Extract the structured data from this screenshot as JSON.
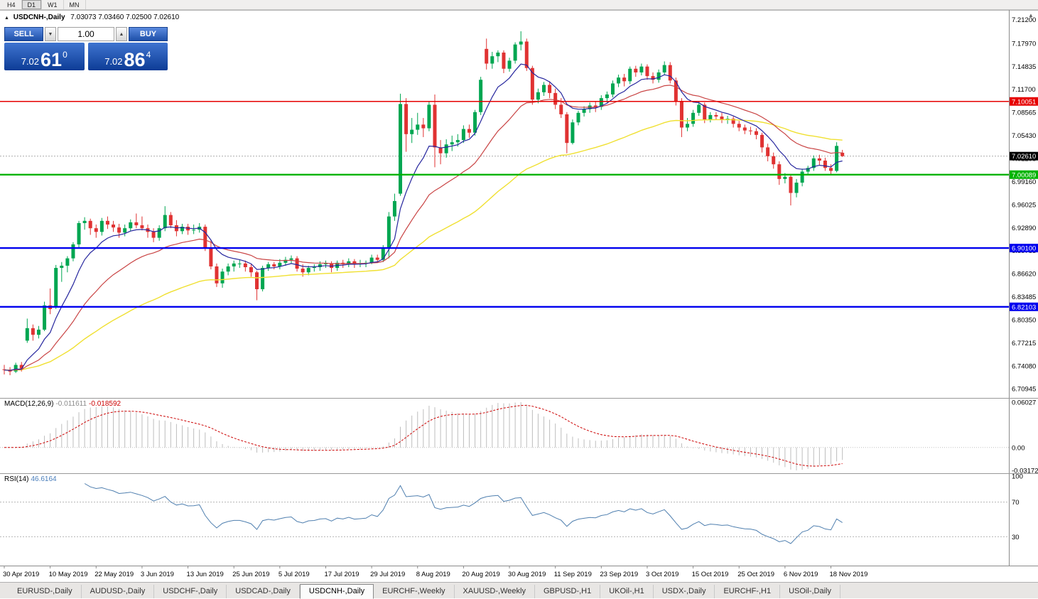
{
  "toolbar": {
    "timeframes": [
      {
        "label": "H4",
        "active": false
      },
      {
        "label": "D1",
        "active": true
      },
      {
        "label": "W1",
        "active": false
      },
      {
        "label": "MN",
        "active": false
      }
    ]
  },
  "chart": {
    "title": "USDCNH-,Daily",
    "ohlc_text": "7.03073 7.03460 7.02500 7.02610"
  },
  "trade_panel": {
    "sell_label": "SELL",
    "buy_label": "BUY",
    "volume": "1.00",
    "sell_price": {
      "prefix": "7.02",
      "big": "61",
      "sup": "0"
    },
    "buy_price": {
      "prefix": "7.02",
      "big": "86",
      "sup": "4"
    }
  },
  "price_axis": {
    "labels": [
      "7.21200",
      "7.17970",
      "7.14835",
      "7.11700",
      "7.08565",
      "7.05430",
      "7.02295",
      "6.99160",
      "6.96025",
      "6.92890",
      "6.89755",
      "6.86620",
      "6.83485",
      "6.80350",
      "6.77215",
      "6.74080",
      "6.70945"
    ],
    "current": "7.02610"
  },
  "levels": [
    {
      "price": 7.10051,
      "label": "7.10051",
      "color": "#e60000",
      "width": 1.4
    },
    {
      "price": 7.00089,
      "label": "7.00089",
      "color": "#00b300",
      "width": 2.4
    },
    {
      "price": 6.901,
      "label": "6.90100",
      "color": "#0000ee",
      "width": 2.4
    },
    {
      "price": 6.82103,
      "label": "6.82103",
      "color": "#0000ee",
      "width": 2.4
    }
  ],
  "macd": {
    "title": "MACD(12,26,9)",
    "value_main": "-0.011611",
    "value_signal": "-0.018592",
    "axis_top": "0.06027",
    "axis_zero": "0.00",
    "axis_bottom": "-0.03172"
  },
  "rsi": {
    "title": "RSI(14)",
    "value": "46.6164",
    "axis": [
      "100",
      "70",
      "30"
    ],
    "levels": [
      70,
      30
    ]
  },
  "date_axis": {
    "labels": [
      "30 Apr 2019",
      "10 May 2019",
      "22 May 2019",
      "3 Jun 2019",
      "13 Jun 2019",
      "25 Jun 2019",
      "5 Jul 2019",
      "17 Jul 2019",
      "29 Jul 2019",
      "8 Aug 2019",
      "20 Aug 2019",
      "30 Aug 2019",
      "11 Sep 2019",
      "23 Sep 2019",
      "3 Oct 2019",
      "15 Oct 2019",
      "25 Oct 2019",
      "6 Nov 2019",
      "18 Nov 2019"
    ],
    "tick_indices": [
      0,
      8,
      16,
      24,
      32,
      40,
      48,
      56,
      64,
      72,
      80,
      88,
      96,
      104,
      112,
      120,
      128,
      136,
      144
    ]
  },
  "tabs": {
    "items": [
      "EURUSD-,Daily",
      "AUDUSD-,Daily",
      "USDCHF-,Daily",
      "USDCAD-,Daily",
      "USDCNH-,Daily",
      "EURCHF-,Weekly",
      "XAUUSD-,Weekly",
      "GBPUSD-,H1",
      "UKOil-,H1",
      "USDX-,Daily",
      "EURCHF-,H1",
      "USOil-,Daily"
    ],
    "active_index": 4
  },
  "colors": {
    "up": "#00a651",
    "down": "#e03232",
    "ma_fast": "#26269e",
    "ma_mid": "#c94444",
    "ma_slow": "#f0e032",
    "macd_hist": "#bdbdbd",
    "macd_signal": "#cc0000",
    "rsi_line": "#4f7faf",
    "current_line": "#aaaaaa"
  },
  "chart_data": {
    "type": "candlestick",
    "symbol": "USDCNH",
    "timeframe": "Daily",
    "ylim": [
      6.7,
      7.225
    ],
    "indicators": {
      "ema_fast": 8,
      "ema_mid": 21,
      "ema_slow": 55,
      "macd": [
        12,
        26,
        9
      ],
      "rsi": 14
    },
    "candles": [
      [
        6.736,
        6.742,
        6.729,
        6.735
      ],
      [
        6.735,
        6.739,
        6.728,
        6.733
      ],
      [
        6.733,
        6.745,
        6.731,
        6.742
      ],
      [
        6.742,
        6.746,
        6.733,
        6.737
      ],
      [
        6.775,
        6.805,
        6.772,
        6.792
      ],
      [
        6.792,
        6.797,
        6.775,
        6.783
      ],
      [
        6.783,
        6.795,
        6.778,
        6.79
      ],
      [
        6.79,
        6.828,
        6.788,
        6.823
      ],
      [
        6.823,
        6.846,
        6.811,
        6.818
      ],
      [
        6.82,
        6.878,
        6.818,
        6.874
      ],
      [
        6.874,
        6.882,
        6.855,
        6.877
      ],
      [
        6.877,
        6.89,
        6.868,
        6.887
      ],
      [
        6.887,
        6.909,
        6.883,
        6.906
      ],
      [
        6.906,
        6.938,
        6.901,
        6.935
      ],
      [
        6.935,
        6.943,
        6.926,
        6.938
      ],
      [
        6.938,
        6.941,
        6.919,
        6.928
      ],
      [
        6.928,
        6.933,
        6.915,
        6.923
      ],
      [
        6.923,
        6.942,
        6.918,
        6.938
      ],
      [
        6.938,
        6.944,
        6.927,
        6.933
      ],
      [
        6.933,
        6.938,
        6.923,
        6.929
      ],
      [
        6.929,
        6.934,
        6.915,
        6.922
      ],
      [
        6.922,
        6.933,
        6.917,
        6.928
      ],
      [
        6.928,
        6.94,
        6.924,
        6.936
      ],
      [
        6.936,
        6.948,
        6.928,
        6.932
      ],
      [
        6.932,
        6.944,
        6.925,
        6.928
      ],
      [
        6.928,
        6.933,
        6.915,
        6.923
      ],
      [
        6.923,
        6.928,
        6.909,
        6.915
      ],
      [
        6.915,
        6.932,
        6.911,
        6.928
      ],
      [
        6.928,
        6.958,
        6.924,
        6.946
      ],
      [
        6.946,
        6.95,
        6.928,
        6.932
      ],
      [
        6.932,
        6.939,
        6.917,
        6.924
      ],
      [
        6.924,
        6.934,
        6.92,
        6.93
      ],
      [
        6.93,
        6.934,
        6.919,
        6.925
      ],
      [
        6.925,
        6.933,
        6.92,
        6.926
      ],
      [
        6.926,
        6.935,
        6.922,
        6.93
      ],
      [
        6.93,
        6.933,
        6.897,
        6.902
      ],
      [
        6.902,
        6.912,
        6.872,
        6.876
      ],
      [
        6.876,
        6.88,
        6.848,
        6.853
      ],
      [
        6.853,
        6.873,
        6.847,
        6.869
      ],
      [
        6.869,
        6.88,
        6.864,
        6.876
      ],
      [
        6.876,
        6.884,
        6.869,
        6.88
      ],
      [
        6.88,
        6.885,
        6.874,
        6.88
      ],
      [
        6.88,
        6.884,
        6.869,
        6.875
      ],
      [
        6.875,
        6.879,
        6.862,
        6.868
      ],
      [
        6.868,
        6.87,
        6.83,
        6.845
      ],
      [
        6.845,
        6.877,
        6.842,
        6.874
      ],
      [
        6.874,
        6.882,
        6.87,
        6.879
      ],
      [
        6.879,
        6.882,
        6.872,
        6.876
      ],
      [
        6.876,
        6.886,
        6.872,
        6.881
      ],
      [
        6.881,
        6.889,
        6.877,
        6.885
      ],
      [
        6.885,
        6.891,
        6.88,
        6.887
      ],
      [
        6.887,
        6.89,
        6.869,
        6.873
      ],
      [
        6.873,
        6.879,
        6.862,
        6.868
      ],
      [
        6.868,
        6.877,
        6.864,
        6.874
      ],
      [
        6.874,
        6.879,
        6.869,
        6.875
      ],
      [
        6.875,
        6.883,
        6.87,
        6.879
      ],
      [
        6.879,
        6.884,
        6.874,
        6.88
      ],
      [
        6.88,
        6.883,
        6.868,
        6.874
      ],
      [
        6.874,
        6.884,
        6.87,
        6.881
      ],
      [
        6.881,
        6.885,
        6.874,
        6.879
      ],
      [
        6.879,
        6.887,
        6.875,
        6.883
      ],
      [
        6.883,
        6.886,
        6.874,
        6.879
      ],
      [
        6.879,
        6.885,
        6.875,
        6.88
      ],
      [
        6.88,
        6.884,
        6.875,
        6.881
      ],
      [
        6.881,
        6.892,
        6.879,
        6.888
      ],
      [
        6.888,
        6.892,
        6.881,
        6.885
      ],
      [
        6.885,
        6.905,
        6.882,
        6.9
      ],
      [
        6.9,
        6.95,
        6.887,
        6.944
      ],
      [
        6.944,
        6.975,
        6.938,
        6.965
      ],
      [
        6.975,
        7.111,
        6.972,
        7.097
      ],
      [
        7.097,
        7.105,
        7.032,
        7.056
      ],
      [
        7.056,
        7.078,
        7.044,
        7.062
      ],
      [
        7.062,
        7.085,
        7.055,
        7.069
      ],
      [
        7.069,
        7.078,
        7.052,
        7.064
      ],
      [
        7.064,
        7.101,
        7.06,
        7.096
      ],
      [
        7.096,
        7.11,
        7.011,
        7.038
      ],
      [
        7.038,
        7.048,
        7.015,
        7.03
      ],
      [
        7.03,
        7.049,
        7.024,
        7.042
      ],
      [
        7.042,
        7.054,
        7.033,
        7.045
      ],
      [
        7.045,
        7.056,
        7.039,
        7.048
      ],
      [
        7.048,
        7.068,
        7.044,
        7.063
      ],
      [
        7.063,
        7.069,
        7.051,
        7.058
      ],
      [
        7.058,
        7.089,
        7.054,
        7.086
      ],
      [
        7.086,
        7.134,
        7.082,
        7.13
      ],
      [
        7.172,
        7.186,
        7.144,
        7.152
      ],
      [
        7.152,
        7.168,
        7.145,
        7.162
      ],
      [
        7.162,
        7.17,
        7.154,
        7.167
      ],
      [
        7.167,
        7.17,
        7.139,
        7.145
      ],
      [
        7.145,
        7.16,
        7.141,
        7.156
      ],
      [
        7.156,
        7.181,
        7.152,
        7.178
      ],
      [
        7.178,
        7.196,
        7.17,
        7.182
      ],
      [
        7.182,
        7.186,
        7.142,
        7.146
      ],
      [
        7.146,
        7.149,
        7.096,
        7.103
      ],
      [
        7.103,
        7.118,
        7.098,
        7.113
      ],
      [
        7.113,
        7.127,
        7.108,
        7.123
      ],
      [
        7.123,
        7.128,
        7.105,
        7.112
      ],
      [
        7.112,
        7.118,
        7.09,
        7.096
      ],
      [
        7.096,
        7.105,
        7.078,
        7.083
      ],
      [
        7.083,
        7.086,
        7.03,
        7.044
      ],
      [
        7.044,
        7.076,
        7.042,
        7.072
      ],
      [
        7.072,
        7.088,
        7.068,
        7.085
      ],
      [
        7.085,
        7.094,
        7.08,
        7.09
      ],
      [
        7.09,
        7.099,
        7.085,
        7.095
      ],
      [
        7.095,
        7.1,
        7.086,
        7.093
      ],
      [
        7.093,
        7.109,
        7.089,
        7.105
      ],
      [
        7.105,
        7.114,
        7.099,
        7.11
      ],
      [
        7.11,
        7.129,
        7.106,
        7.125
      ],
      [
        7.125,
        7.137,
        7.12,
        7.133
      ],
      [
        7.133,
        7.138,
        7.121,
        7.128
      ],
      [
        7.128,
        7.148,
        7.124,
        7.145
      ],
      [
        7.145,
        7.149,
        7.134,
        7.14
      ],
      [
        7.14,
        7.152,
        7.136,
        7.148
      ],
      [
        7.148,
        7.151,
        7.13,
        7.135
      ],
      [
        7.135,
        7.14,
        7.125,
        7.13
      ],
      [
        7.13,
        7.144,
        7.126,
        7.14
      ],
      [
        7.14,
        7.155,
        7.136,
        7.15
      ],
      [
        7.15,
        7.154,
        7.125,
        7.129
      ],
      [
        7.129,
        7.133,
        7.095,
        7.1
      ],
      [
        7.1,
        7.105,
        7.052,
        7.065
      ],
      [
        7.065,
        7.078,
        7.06,
        7.07
      ],
      [
        7.07,
        7.089,
        7.066,
        7.085
      ],
      [
        7.085,
        7.1,
        7.081,
        7.096
      ],
      [
        7.096,
        7.099,
        7.071,
        7.076
      ],
      [
        7.076,
        7.086,
        7.072,
        7.082
      ],
      [
        7.082,
        7.086,
        7.076,
        7.08
      ],
      [
        7.08,
        7.085,
        7.071,
        7.076
      ],
      [
        7.076,
        7.081,
        7.07,
        7.077
      ],
      [
        7.077,
        7.08,
        7.065,
        7.07
      ],
      [
        7.07,
        7.074,
        7.06,
        7.065
      ],
      [
        7.065,
        7.069,
        7.056,
        7.061
      ],
      [
        7.061,
        7.066,
        7.055,
        7.06
      ],
      [
        7.06,
        7.064,
        7.049,
        7.055
      ],
      [
        7.055,
        7.058,
        7.031,
        7.038
      ],
      [
        7.038,
        7.043,
        7.019,
        7.026
      ],
      [
        7.026,
        7.031,
        7.009,
        7.015
      ],
      [
        7.015,
        7.019,
        6.987,
        6.995
      ],
      [
        6.995,
        7.003,
        6.989,
        6.998
      ],
      [
        6.998,
        7.001,
        6.959,
        6.976
      ],
      [
        6.976,
        6.995,
        6.97,
        6.99
      ],
      [
        6.99,
        7.009,
        6.985,
        7.005
      ],
      [
        7.005,
        7.013,
        7.0,
        7.01
      ],
      [
        7.01,
        7.027,
        7.006,
        7.023
      ],
      [
        7.023,
        7.028,
        7.014,
        7.02
      ],
      [
        7.02,
        7.024,
        7.006,
        7.01
      ],
      [
        7.01,
        7.015,
        7.001,
        7.006
      ],
      [
        7.006,
        7.045,
        7.004,
        7.04
      ],
      [
        7.0307,
        7.0346,
        7.025,
        7.0261
      ]
    ]
  }
}
